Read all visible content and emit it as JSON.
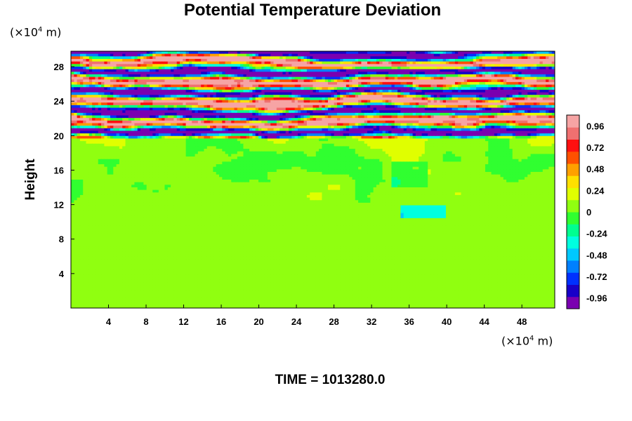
{
  "chart_data": {
    "type": "heatmap",
    "title": "Potential Temperature Deviation",
    "ylabel": "Height",
    "x_unit": {
      "prefix": "(×10",
      "exponent": "4",
      "suffix": " m)"
    },
    "y_unit": {
      "prefix": "(×10",
      "exponent": "4",
      "suffix": " m)"
    },
    "xlim": [
      0,
      51.5
    ],
    "ylim": [
      0,
      29.8
    ],
    "x_ticks": [
      4,
      8,
      12,
      16,
      20,
      24,
      28,
      32,
      36,
      40,
      44,
      48
    ],
    "y_ticks": [
      4,
      8,
      12,
      16,
      20,
      24,
      28
    ],
    "colorbar": {
      "min": -1.08,
      "max": 1.08,
      "ticks": [
        "0.96",
        "0.72",
        "0.48",
        "0.24",
        "0",
        "-0.24",
        "-0.48",
        "-0.72",
        "-0.96"
      ],
      "tick_values": [
        0.96,
        0.72,
        0.48,
        0.24,
        0,
        -0.24,
        -0.48,
        -0.72,
        -0.96
      ],
      "colors": [
        "#7a00b0",
        "#1800c8",
        "#0030ff",
        "#0080ff",
        "#00c8ff",
        "#00ffe0",
        "#00ff90",
        "#30ff30",
        "#90ff10",
        "#e0ff00",
        "#ffe000",
        "#ffa000",
        "#ff5000",
        "#ff1010",
        "#f07070",
        "#f6a4a4"
      ]
    },
    "time_label": "TIME = 1013280.0"
  }
}
